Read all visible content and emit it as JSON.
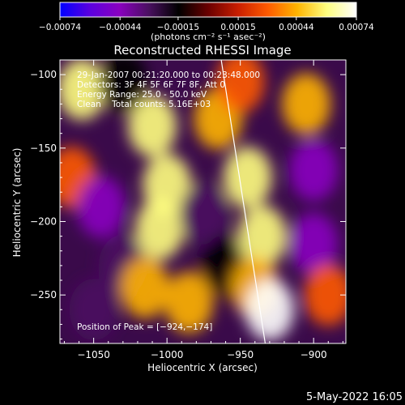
{
  "chart_data": {
    "type": "heatmap",
    "title": "Reconstructed RHESSI Image",
    "xlabel": "Heliocentric X (arcsec)",
    "ylabel": "Heliocentric Y (arcsec)",
    "xlim": [
      -1073,
      -878
    ],
    "ylim": [
      -283,
      -90
    ],
    "x_ticks": [
      -1050,
      -1000,
      -950,
      -900
    ],
    "y_ticks": [
      -100,
      -150,
      -200,
      -250
    ],
    "x_tick_labels": [
      "−1050",
      "−1000",
      "−950",
      "−900"
    ],
    "y_tick_labels": [
      "−100",
      "−150",
      "−200",
      "−250"
    ],
    "colorbar": {
      "range": [
        -0.00074,
        0.00074
      ],
      "ticks": [
        -0.00074,
        -0.00044,
        -0.00015,
        0.00015,
        0.00044,
        0.00074
      ],
      "tick_labels": [
        "−0.00074",
        "−0.00044",
        "−0.00015",
        "0.00015",
        "0.00044",
        "0.00074"
      ],
      "unit_label": "(photons cm⁻² s⁻¹ asec⁻²)",
      "colors": [
        "#0000ff",
        "#5a00e0",
        "#8a00c0",
        "#4a1060",
        "#000000",
        "#6a0000",
        "#c81e00",
        "#ff5a00",
        "#ffb400",
        "#ffff80",
        "#ffffff"
      ]
    },
    "annotations": [
      "29-Jan-2007 00:21:20.000 to 00:23:48.000",
      "Detectors: 3F 4F 5F 6F 7F 8F, Att 0",
      "Energy Range: 25.0 - 50.0 keV",
      "Clean    Total counts: 5.16E+03",
      "Position of Peak = [−924,−174]"
    ],
    "limb_line": {
      "x": [
        -963,
        -933
      ],
      "y": [
        -90,
        -283
      ]
    },
    "intensity_blobs": [
      {
        "x": -1058,
        "y": -110,
        "v": 0.7
      },
      {
        "x": -1065,
        "y": -170,
        "v": 0.45
      },
      {
        "x": -1045,
        "y": -190,
        "v": -0.55
      },
      {
        "x": -1030,
        "y": -230,
        "v": -0.5
      },
      {
        "x": -1050,
        "y": -260,
        "v": -0.4
      },
      {
        "x": -1010,
        "y": -135,
        "v": 0.75
      },
      {
        "x": -1000,
        "y": -175,
        "v": 0.8
      },
      {
        "x": -1005,
        "y": -205,
        "v": 0.85
      },
      {
        "x": -1015,
        "y": -245,
        "v": 0.6
      },
      {
        "x": -985,
        "y": -255,
        "v": 0.55
      },
      {
        "x": -965,
        "y": -130,
        "v": 0.6
      },
      {
        "x": -975,
        "y": -195,
        "v": -0.35
      },
      {
        "x": -960,
        "y": -230,
        "v": -0.3
      },
      {
        "x": -945,
        "y": -170,
        "v": 0.8
      },
      {
        "x": -935,
        "y": -210,
        "v": 0.7
      },
      {
        "x": -940,
        "y": -245,
        "v": 0.6
      },
      {
        "x": -930,
        "y": -260,
        "v": 0.9
      },
      {
        "x": -905,
        "y": -120,
        "v": 0.5
      },
      {
        "x": -900,
        "y": -165,
        "v": -0.6
      },
      {
        "x": -900,
        "y": -215,
        "v": -0.7
      },
      {
        "x": -890,
        "y": -250,
        "v": 0.3
      },
      {
        "x": -950,
        "y": -105,
        "v": 0.4
      },
      {
        "x": -1030,
        "y": -105,
        "v": -0.25
      }
    ]
  },
  "footer": {
    "date_stamp": "5-May-2022 16:05"
  }
}
